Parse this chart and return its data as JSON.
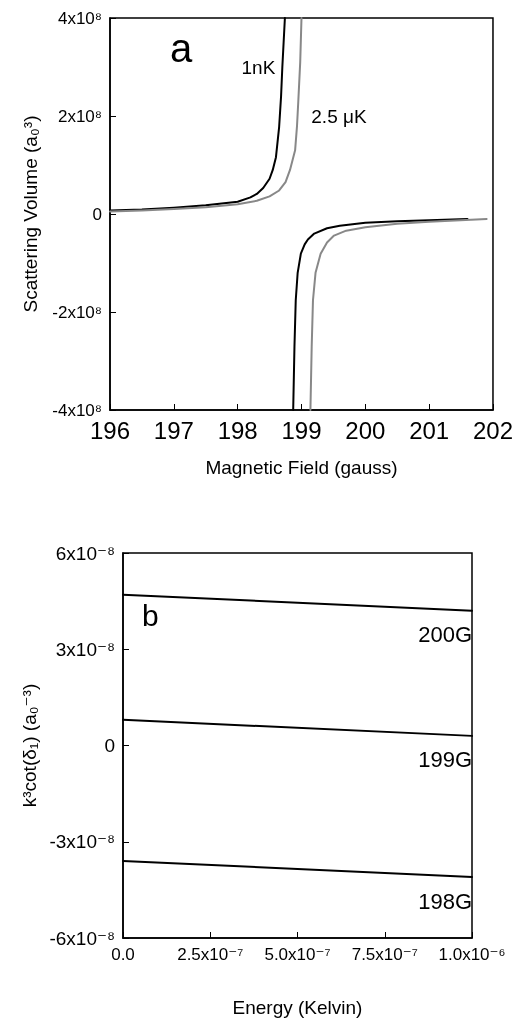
{
  "chart_data": [
    {
      "type": "line",
      "xlabel": "Magnetic Field (gauss)",
      "ylabel": "Scattering Volume (a₀³)",
      "annotations": [
        "a"
      ],
      "xlim": [
        196,
        202
      ],
      "xticks": [
        196,
        197,
        198,
        199,
        200,
        201,
        202
      ],
      "ylim": [
        -400000000,
        400000000
      ],
      "yticks": [
        {
          "value": -400000000,
          "label": "-4x10⁸"
        },
        {
          "value": -200000000,
          "label": "-2x10⁸"
        },
        0,
        {
          "value": 200000000,
          "label": "2x10⁸"
        },
        {
          "value": 400000000,
          "label": "4x10⁸"
        }
      ],
      "grid": false,
      "legend": false,
      "marker": "none",
      "line_style": "solid",
      "series": [
        {
          "name": "1nK",
          "color": "#000000",
          "x": [
            196,
            196.5,
            197,
            197.5,
            198,
            198.2,
            198.3,
            198.4,
            198.5,
            198.55,
            198.6,
            198.65,
            198.68,
            198.7,
            198.72,
            198.74
          ],
          "values": [
            7000000,
            9000000,
            13000000,
            18000000,
            25000000,
            34000000,
            41000000,
            53000000,
            72000000,
            90000000,
            116000000,
            178000000,
            240000000,
            300000000,
            350000000,
            400000000
          ]
        },
        {
          "color": "#000000",
          "x": [
            198.87,
            198.89,
            198.91,
            198.94,
            198.99,
            199.05,
            199.1,
            199.2,
            199.4,
            199.6,
            200,
            200.5,
            201,
            201.6
          ],
          "values": [
            -400000000,
            -270000000,
            -176000000,
            -120000000,
            -81000000,
            -62000000,
            -52000000,
            -40000000,
            -29000000,
            -24000000,
            -18000000,
            -15000000,
            -13000000,
            -10000000
          ]
        },
        {
          "name": "2.5 μK",
          "color": "#888888",
          "x": [
            196,
            196.5,
            197,
            197.5,
            198,
            198.3,
            198.5,
            198.65,
            198.75,
            198.82,
            198.9,
            198.93,
            198.95,
            198.98,
            199
          ],
          "values": [
            5000000,
            7000000,
            10000000,
            14000000,
            20000000,
            27000000,
            36000000,
            48000000,
            65000000,
            90000000,
            130000000,
            180000000,
            230000000,
            310000000,
            400000000
          ]
        },
        {
          "color": "#888888",
          "x": [
            199.14,
            199.16,
            199.18,
            199.22,
            199.3,
            199.4,
            199.51,
            199.7,
            200,
            200.5,
            201,
            201.9
          ],
          "values": [
            -400000000,
            -270000000,
            -176000000,
            -120000000,
            -81000000,
            -58000000,
            -44000000,
            -34000000,
            -27000000,
            -20000000,
            -16000000,
            -10000000
          ]
        }
      ]
    },
    {
      "type": "line",
      "xlabel": "Energy (Kelvin)",
      "ylabel": "k³cot(δ₁) (a₀⁻³)",
      "annotations": [
        "b"
      ],
      "xlim": [
        0,
        1e-06
      ],
      "xticks": [
        {
          "value": 0,
          "label": "0.0"
        },
        {
          "value": 2.5e-07,
          "label": "2.5x10⁻⁷"
        },
        {
          "value": 5e-07,
          "label": "5.0x10⁻⁷"
        },
        {
          "value": 7.5e-07,
          "label": "7.5x10⁻⁷"
        },
        {
          "value": 1e-06,
          "label": "1.0x10⁻⁶"
        }
      ],
      "ylim": [
        -6e-08,
        6e-08
      ],
      "yticks": [
        {
          "value": -6e-08,
          "label": "-6x10⁻⁸"
        },
        {
          "value": -3e-08,
          "label": "-3x10⁻⁸"
        },
        0,
        {
          "value": 3e-08,
          "label": "3x10⁻⁸"
        },
        {
          "value": 6e-08,
          "label": "6x10⁻⁸"
        }
      ],
      "grid": false,
      "legend": false,
      "marker": "none",
      "line_style": "solid",
      "series": [
        {
          "name": "200G",
          "color": "#000000",
          "x": [
            0,
            1e-06
          ],
          "values": [
            4.7e-08,
            4.2e-08
          ]
        },
        {
          "name": "199G",
          "color": "#000000",
          "x": [
            0,
            1e-06
          ],
          "values": [
            8e-09,
            3e-09
          ]
        },
        {
          "name": "198G",
          "color": "#000000",
          "x": [
            0,
            1e-06
          ],
          "values": [
            -3.6e-08,
            -4.1e-08
          ]
        }
      ]
    }
  ]
}
